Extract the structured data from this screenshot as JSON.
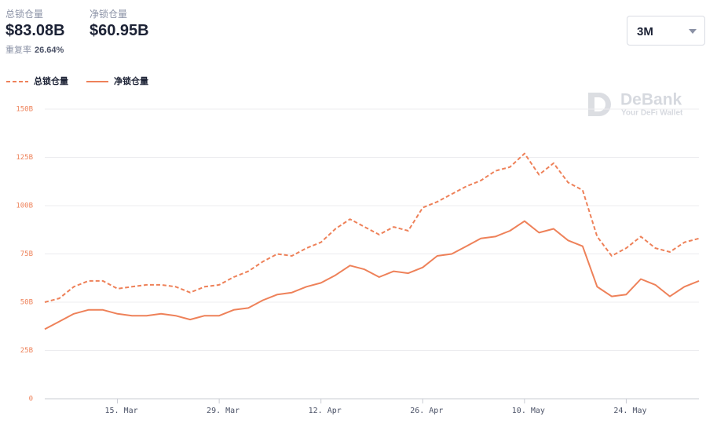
{
  "header": {
    "stats": [
      {
        "label": "总锁仓量",
        "value": "$83.08B"
      },
      {
        "label": "净锁仓量",
        "value": "$60.95B"
      }
    ],
    "ratio_label": "重复率",
    "ratio_value": "26.64%",
    "range_select": "3M"
  },
  "watermark": {
    "brand": "DeBank",
    "tagline": "Your DeFi Wallet"
  },
  "chart_data": {
    "type": "line",
    "categories": [
      null,
      null,
      null,
      null,
      null,
      "15. Mar",
      null,
      null,
      null,
      null,
      null,
      null,
      "29. Mar",
      null,
      null,
      null,
      null,
      null,
      null,
      "12. Apr",
      null,
      null,
      null,
      null,
      null,
      null,
      "26. Apr",
      null,
      null,
      null,
      null,
      null,
      null,
      "10. May",
      null,
      null,
      null,
      null,
      null,
      null,
      "24. May",
      null,
      null,
      null,
      null,
      null
    ],
    "series": [
      {
        "name": "总锁仓量",
        "color": "#ee8159",
        "dash": true,
        "values": [
          50,
          52,
          58,
          61,
          61,
          57,
          58,
          59,
          59,
          58,
          55,
          58,
          59,
          63,
          66,
          71,
          75,
          74,
          78,
          81,
          88,
          93,
          89,
          85,
          89,
          87,
          99,
          102,
          106,
          110,
          113,
          118,
          120,
          127,
          116,
          122,
          112,
          108,
          84,
          74,
          78,
          84,
          78,
          76,
          81,
          83
        ]
      },
      {
        "name": "净锁仓量",
        "color": "#ee8159",
        "dash": false,
        "values": [
          36,
          40,
          44,
          46,
          46,
          44,
          43,
          43,
          44,
          43,
          41,
          43,
          43,
          46,
          47,
          51,
          54,
          55,
          58,
          60,
          64,
          69,
          67,
          63,
          66,
          65,
          68,
          74,
          75,
          79,
          83,
          84,
          87,
          92,
          86,
          88,
          82,
          79,
          58,
          53,
          54,
          62,
          59,
          53,
          58,
          61
        ]
      }
    ],
    "ylim": [
      0,
      150
    ],
    "yticks": [
      0,
      {
        "value": 25,
        "label": "25B"
      },
      {
        "value": 50,
        "label": "50B"
      },
      {
        "value": 75,
        "label": "75B"
      },
      {
        "value": 100,
        "label": "100B"
      },
      {
        "value": 125,
        "label": "125B"
      },
      {
        "value": 150,
        "label": "150B"
      }
    ],
    "grid": true,
    "legend": "top-left"
  }
}
